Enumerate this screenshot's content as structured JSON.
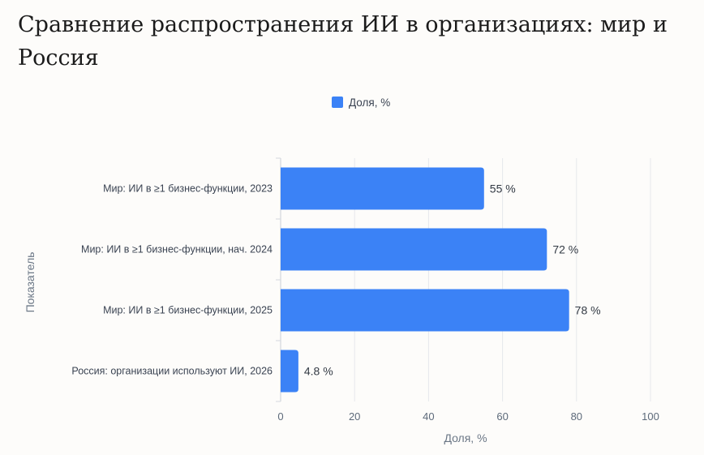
{
  "page": {
    "title": "Сравнение распространения ИИ в организациях: мир и Россия"
  },
  "chart_data": {
    "type": "bar",
    "orientation": "horizontal",
    "title": "",
    "categories": [
      "Мир: ИИ в ≥1 бизнес-функции, 2023",
      "Мир: ИИ в ≥1 бизнес-функции, нач. 2024",
      "Мир: ИИ в ≥1 бизнес-функции, 2025",
      "Россия: организации используют ИИ, 2026"
    ],
    "series": [
      {
        "name": "Доля, %",
        "color": "#3b82f6",
        "values": [
          55,
          72,
          78,
          4.8
        ],
        "labels": [
          "55 %",
          "72 %",
          "78 %",
          "4.8 %"
        ]
      }
    ],
    "xlabel": "Доля, %",
    "ylabel": "Показатель",
    "xlim": [
      0,
      100
    ],
    "xticks": [
      "0",
      "20",
      "40",
      "60",
      "80",
      "100"
    ],
    "grid": true,
    "legend_position": "top"
  }
}
